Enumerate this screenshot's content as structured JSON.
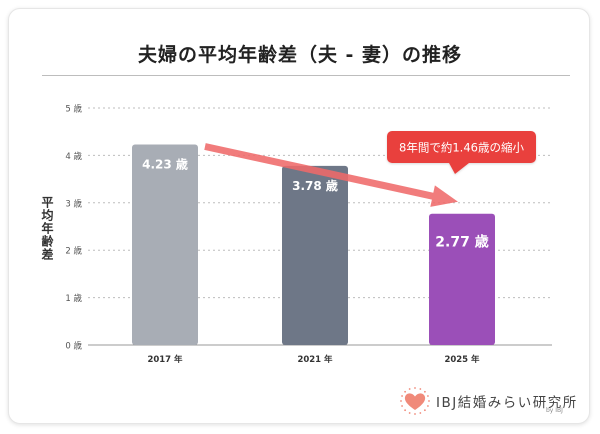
{
  "title": "夫婦の平均年齢差（夫 - 妻）の推移",
  "ylabel": "平均年齢差",
  "callout": "8年間で約1.46歳の縮小",
  "logo": {
    "text": "IBJ結婚みらい研究所",
    "sub": "by IBJ"
  },
  "colors": {
    "bars": [
      "#a8adb5",
      "#6e7787",
      "#9b4fb8"
    ],
    "arrow": "#ef6a6a",
    "callout_bg": "#e9403c",
    "heart": "#f08a7a"
  },
  "chart_data": {
    "type": "bar",
    "categories": [
      "2017 年",
      "2021 年",
      "2025 年"
    ],
    "values": [
      4.23,
      3.78,
      2.77
    ],
    "value_labels": [
      "4.23 歳",
      "3.78 歳",
      "2.77 歳"
    ],
    "yticks": [
      "0 歳",
      "1 歳",
      "2 歳",
      "3 歳",
      "4 歳",
      "5 歳"
    ],
    "ylim": [
      0,
      5
    ],
    "ylabel": "平均年齢差",
    "grid": true
  }
}
